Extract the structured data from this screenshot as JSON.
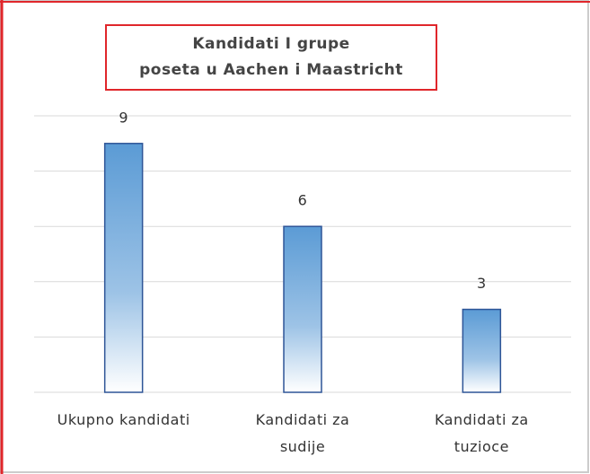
{
  "chart_data": {
    "type": "bar",
    "title": [
      "Kandidati I grupe",
      "poseta u Aachen i Maastricht"
    ],
    "categories": [
      "Ukupno kandidati",
      "Kandidati za sudije",
      "Kandidati za tuzioce"
    ],
    "values": [
      9,
      6,
      3
    ],
    "color": "#5b9bd5",
    "ylim": [
      0,
      10
    ],
    "yticks": [
      0,
      2,
      4,
      6,
      8,
      10
    ],
    "grid": true
  }
}
